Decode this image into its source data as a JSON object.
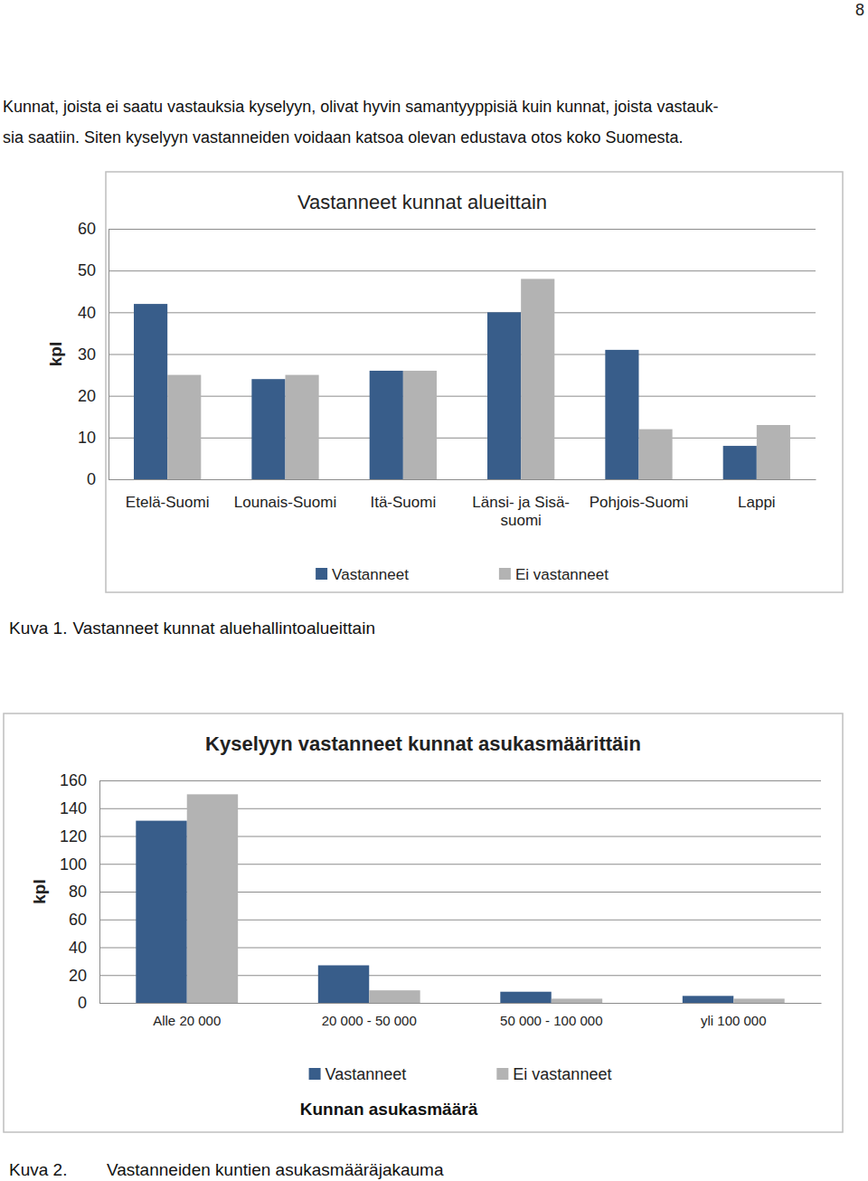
{
  "page": {
    "page_number": 8,
    "paragraph": [
      "Kunnat, joista ei saatu vastauksia kyselyyn, olivat hyvin samantyyppisiä kuin kunnat, joista vastauk-",
      "sia saatiin. Siten kyselyyn vastanneiden voidaan katsoa olevan edustava otos koko Suomesta."
    ],
    "captions": [
      {
        "label": "Kuva 1.",
        "text": "Vastanneet kunnat aluehallintoalueittain"
      },
      {
        "label": "Kuva 2.",
        "text": "Vastanneiden kuntien asukasmääräjakauma"
      }
    ]
  },
  "chart_data": [
    {
      "type": "bar",
      "title": "Vastanneet kunnat alueittain",
      "y_label": "kpl",
      "categories": [
        "Etelä-Suomi",
        "Lounais-Suomi",
        "Itä-Suomi",
        "Länsi- ja Sisä-suomi",
        "Pohjois-Suomi",
        "Lappi"
      ],
      "series": [
        {
          "name": "Vastanneet",
          "color": "#385D8A",
          "values": [
            42,
            24,
            26,
            40,
            31,
            8
          ]
        },
        {
          "name": "Ei vastanneet",
          "color": "#B3B3B3",
          "values": [
            25,
            25,
            26,
            48,
            12,
            13
          ]
        }
      ],
      "ylim": [
        0,
        60
      ],
      "yticks": [
        0,
        10,
        20,
        30,
        40,
        50,
        60
      ],
      "grid": true,
      "legend": "bottom"
    },
    {
      "type": "bar",
      "title": "Kyselyyn vastanneet kunnat asukasmäärittäin",
      "y_label": "kpl",
      "x_label": "Kunnan asukasmäärä",
      "categories": [
        "Alle 20 000",
        "20 000 - 50 000",
        "50 000 - 100 000",
        "yli 100 000"
      ],
      "series": [
        {
          "name": "Vastanneet",
          "color": "#385D8A",
          "values": [
            131,
            27,
            8,
            5
          ]
        },
        {
          "name": "Ei vastanneet",
          "color": "#B3B3B3",
          "values": [
            150,
            9,
            3,
            3
          ]
        }
      ],
      "ylim": [
        0,
        160
      ],
      "yticks": [
        0,
        20,
        40,
        60,
        80,
        100,
        120,
        140,
        160
      ],
      "grid": true,
      "legend": "bottom"
    }
  ]
}
